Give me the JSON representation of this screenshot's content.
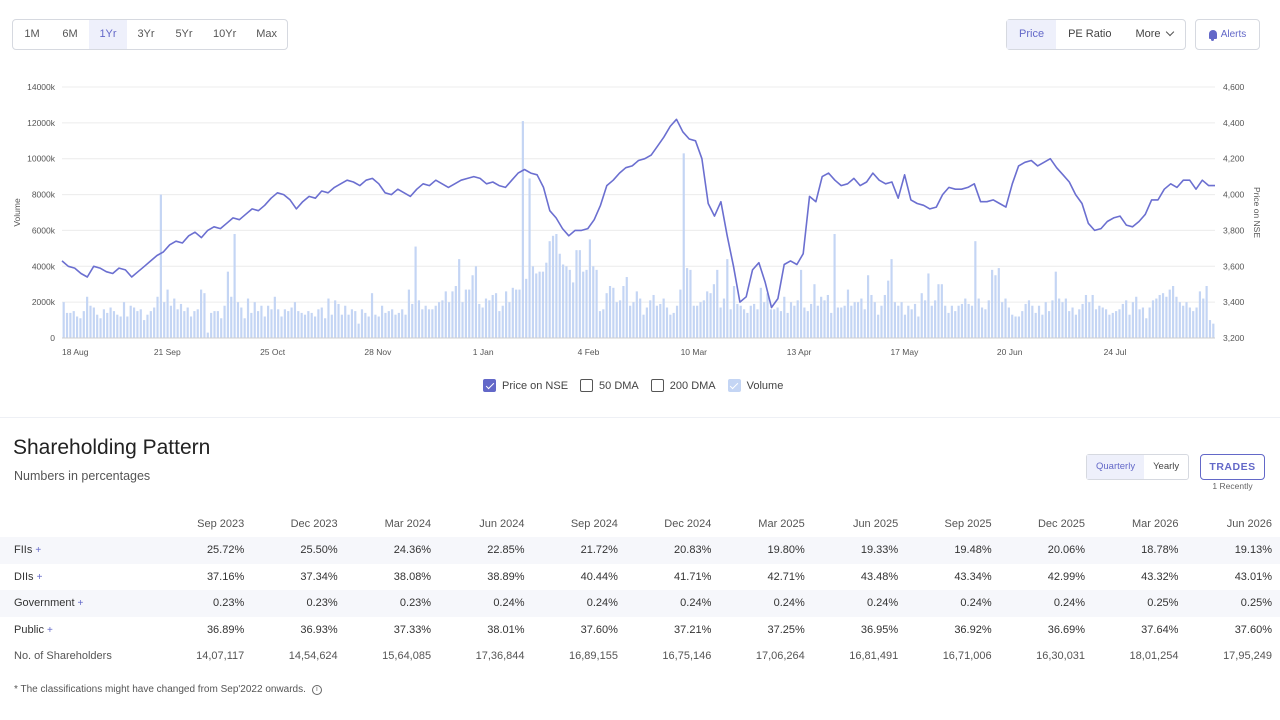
{
  "toolbar": {
    "ranges": [
      "1M",
      "6M",
      "1Yr",
      "3Yr",
      "5Yr",
      "10Yr",
      "Max"
    ],
    "active_range": "1Yr",
    "views": [
      "Price",
      "PE Ratio"
    ],
    "more_label": "More",
    "alerts_label": "Alerts"
  },
  "legend": {
    "price": "Price on NSE",
    "dma50": "50 DMA",
    "dma200": "200 DMA",
    "volume": "Volume"
  },
  "colors": {
    "accent": "#6368c8",
    "price_line": "#6b6fd0",
    "volume_bar": "#c4d5f4"
  },
  "chart_data": {
    "type": "line",
    "ylabel_left": "Volume",
    "ylabel_right": "Price on NSE",
    "left_ticks": [
      "0",
      "2000k",
      "4000k",
      "6000k",
      "8000k",
      "10000k",
      "12000k",
      "14000k"
    ],
    "right_ticks": [
      "3,200",
      "3,400",
      "3,600",
      "3,800",
      "4,000",
      "4,200",
      "4,400",
      "4,600"
    ],
    "x_ticks": [
      "18 Aug",
      "21 Sep",
      "25 Oct",
      "28 Nov",
      "1 Jan",
      "4 Feb",
      "10 Mar",
      "13 Apr",
      "17 May",
      "20 Jun",
      "24 Jul"
    ],
    "ylim_left": [
      0,
      14000
    ],
    "ylim_right": [
      3200,
      4600
    ],
    "series": [
      {
        "name": "Price on NSE",
        "values": [
          3630,
          3600,
          3590,
          3560,
          3540,
          3600,
          3590,
          3570,
          3560,
          3590,
          3580,
          3540,
          3570,
          3600,
          3630,
          3660,
          3680,
          3720,
          3740,
          3730,
          3770,
          3790,
          3760,
          3800,
          3820,
          3810,
          3840,
          3870,
          3860,
          3890,
          3920,
          3910,
          3940,
          3980,
          4010,
          4000,
          3970,
          3920,
          3960,
          3990,
          3980,
          4020,
          4010,
          4040,
          4060,
          4080,
          4070,
          4050,
          4080,
          4090,
          4060,
          4010,
          4000,
          4030,
          4010,
          3990,
          4030,
          4060,
          4050,
          4080,
          4060,
          4040,
          4060,
          4080,
          4090,
          4100,
          4090,
          4060,
          4070,
          4050,
          4040,
          4080,
          4120,
          4140,
          4120,
          4110,
          4040,
          3910,
          3870,
          3810,
          3770,
          3800,
          3800,
          3810,
          3860,
          3940,
          4050,
          4080,
          4120,
          4150,
          4160,
          4190,
          4200,
          4220,
          4270,
          4320,
          4380,
          4420,
          4350,
          4310,
          4300,
          4200,
          3950,
          3880,
          3960,
          3770,
          3600,
          3400,
          3430,
          3580,
          3620,
          3510,
          3370,
          3420,
          3610,
          3630,
          3610,
          3670,
          3990,
          3960,
          4100,
          4120,
          4080,
          4050,
          4060,
          4090,
          4050,
          4070,
          4120,
          4080,
          4060,
          4070,
          3980,
          4110,
          3970,
          3950,
          3940,
          3920,
          3930,
          4000,
          4040,
          4030,
          4030,
          4040,
          4060,
          3960,
          3960,
          3970,
          3950,
          3930,
          4060,
          4160,
          4180,
          4190,
          4160,
          4180,
          4200,
          4150,
          4110,
          4070,
          4000,
          3950,
          3840,
          3800,
          3810,
          3850,
          3870,
          3880,
          3830,
          3820,
          3850,
          3890,
          3970,
          3970,
          4030,
          4060,
          4040,
          4080,
          4080,
          4030,
          4080,
          4050,
          4050
        ]
      },
      {
        "name": "Volume",
        "values": [
          2000,
          1400,
          1400,
          1500,
          1200,
          1100,
          1500,
          2300,
          1800,
          1700,
          1300,
          1100,
          1600,
          1400,
          1700,
          1500,
          1300,
          1200,
          2000,
          1200,
          1800,
          1700,
          1500,
          1600,
          1000,
          1300,
          1500,
          1700,
          2300,
          8000,
          2000,
          2700,
          1800,
          2200,
          1600,
          1900,
          1500,
          1700,
          1200,
          1500,
          1600,
          2700,
          2500,
          300,
          1400,
          1500,
          1500,
          1100,
          1800,
          3700,
          2300,
          5800,
          2000,
          1700,
          1100,
          2200,
          1400,
          2000,
          1500,
          1800,
          1200,
          1800,
          1600,
          2300,
          1600,
          1200,
          1600,
          1500,
          1700,
          2000,
          1500,
          1400,
          1300,
          1500,
          1400,
          1200,
          1600,
          1700,
          1100,
          2200,
          1300,
          2100,
          1900,
          1300,
          1800,
          1300,
          1600,
          1500,
          800,
          1600,
          1400,
          1200,
          2500,
          1300,
          1200,
          1800,
          1400,
          1500,
          1600,
          1300,
          1400,
          1600,
          1300,
          2700,
          1900,
          5100,
          2100,
          1600,
          1800,
          1600,
          1600,
          1800,
          2000,
          2100,
          2600,
          2000,
          2600,
          2900,
          4400,
          2000,
          2700,
          2700,
          3500,
          4000,
          1900,
          1700,
          2200,
          2100,
          2400,
          2500,
          1500,
          1800,
          2600,
          2000,
          2800,
          2700,
          2700,
          12100,
          3300,
          8900,
          4000,
          3600,
          3700,
          3700,
          4200,
          5400,
          5700,
          5800,
          4700,
          4100,
          4000,
          3800,
          3100,
          4900,
          4900,
          3700,
          3800,
          5500,
          4000,
          3800,
          1500,
          1600,
          2500,
          2900,
          2800,
          2000,
          2100,
          2900,
          3400,
          1800,
          2000,
          2600,
          2200,
          1300,
          1700,
          2100,
          2400,
          1800,
          1900,
          2200,
          1700,
          1300,
          1400,
          1800,
          2700,
          10300,
          3900,
          3800,
          1800,
          1800,
          2000,
          2100,
          2600,
          2500,
          3000,
          3800,
          1700,
          2200,
          4400,
          1600,
          2900,
          1900,
          1800,
          1600,
          1400,
          1800,
          1900,
          1600,
          2800,
          2000,
          2500,
          1600,
          1600,
          1700,
          1500,
          2300,
          1400,
          2000,
          1800,
          2100,
          3800,
          1700,
          1500,
          1900,
          3000,
          1800,
          2300,
          2100,
          2400,
          1400,
          5800,
          1700,
          1700,
          1800,
          2700,
          1800,
          2000,
          2000,
          2200,
          1600,
          3500,
          2400,
          2000,
          1300,
          1800,
          2400,
          3200,
          4400,
          2000,
          1800,
          2000,
          1300,
          1800,
          1600,
          1900,
          1200,
          2500,
          2100,
          3600,
          1800,
          2100,
          3000,
          3000,
          1800,
          1400,
          1800,
          1500,
          1800,
          1900,
          2200,
          1900,
          1800,
          5400,
          2200,
          1700,
          1600,
          2100,
          3800,
          3500,
          3900,
          2000,
          2200,
          1700,
          1300,
          1200,
          1200,
          1500,
          1900,
          2100,
          1800,
          1400,
          1800,
          1300,
          2000,
          1500,
          2100,
          3700,
          2200,
          2000,
          2200,
          1500,
          1700,
          1300,
          1600,
          1900,
          2400,
          2000,
          2400,
          1600,
          1800,
          1700,
          1600,
          1300,
          1400,
          1500,
          1600,
          1900,
          2100,
          1300,
          2000,
          2300,
          1600,
          1700,
          1100,
          1700,
          2100,
          2200,
          2400,
          2500,
          2300,
          2700,
          2900,
          2300,
          2000,
          1800,
          2000,
          1700,
          1500,
          1700,
          2600,
          2200,
          2900,
          1000,
          800
        ]
      }
    ]
  },
  "shareholding": {
    "title": "Shareholding Pattern",
    "subtitle": "Numbers in percentages",
    "toggle": [
      "Quarterly",
      "Yearly"
    ],
    "trades_label": "TRADES",
    "trades_sub": "1 Recently",
    "columns": [
      "Sep 2023",
      "Dec 2023",
      "Mar 2024",
      "Jun 2024",
      "Sep 2024",
      "Dec 2024",
      "Mar 2025",
      "Jun 2025",
      "Sep 2025",
      "Dec 2025",
      "Mar 2026",
      "Jun 2026"
    ],
    "rows": [
      {
        "label": "FIIs",
        "values": [
          "25.72%",
          "25.50%",
          "24.36%",
          "22.85%",
          "21.72%",
          "20.83%",
          "19.80%",
          "19.33%",
          "19.48%",
          "20.06%",
          "18.78%",
          "19.13%"
        ]
      },
      {
        "label": "DIIs",
        "values": [
          "37.16%",
          "37.34%",
          "38.08%",
          "38.89%",
          "40.44%",
          "41.71%",
          "42.71%",
          "43.48%",
          "43.34%",
          "42.99%",
          "43.32%",
          "43.01%"
        ]
      },
      {
        "label": "Government",
        "values": [
          "0.23%",
          "0.23%",
          "0.23%",
          "0.24%",
          "0.24%",
          "0.24%",
          "0.24%",
          "0.24%",
          "0.24%",
          "0.24%",
          "0.25%",
          "0.25%"
        ]
      },
      {
        "label": "Public",
        "values": [
          "36.89%",
          "36.93%",
          "37.33%",
          "38.01%",
          "37.60%",
          "37.21%",
          "37.25%",
          "36.95%",
          "36.92%",
          "36.69%",
          "37.64%",
          "37.60%"
        ]
      }
    ],
    "shareholders_label": "No. of Shareholders",
    "shareholders": [
      "14,07,117",
      "14,54,624",
      "15,64,085",
      "17,36,844",
      "16,89,155",
      "16,75,146",
      "17,06,264",
      "16,81,491",
      "16,71,006",
      "16,30,031",
      "18,01,254",
      "17,95,249"
    ],
    "footnote": "* The classifications might have changed from Sep'2022 onwards."
  }
}
